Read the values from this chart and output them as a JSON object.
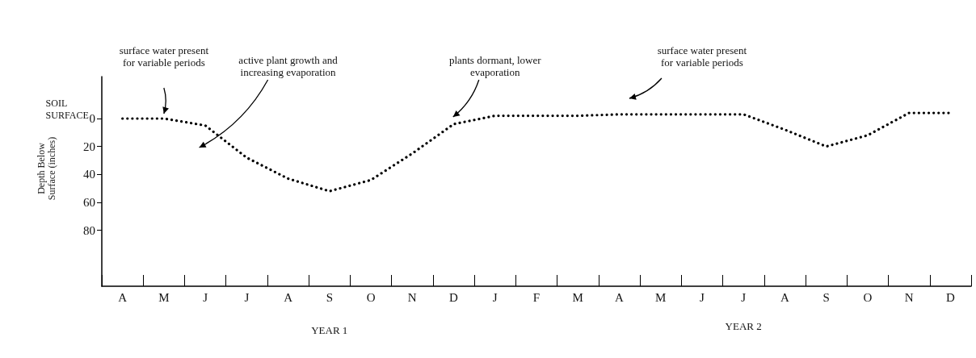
{
  "chart_data": {
    "type": "line",
    "ylabel": "Depth Below Surface (inches)",
    "categories": [
      "A",
      "M",
      "J",
      "J",
      "A",
      "S",
      "O",
      "N",
      "D",
      "J",
      "F",
      "M",
      "A",
      "M",
      "J",
      "J",
      "A",
      "S",
      "O",
      "N",
      "D"
    ],
    "series": [
      {
        "color": "#000000",
        "values": [
          0,
          0,
          5,
          28,
          43,
          52,
          44,
          25,
          4,
          -2,
          -2,
          -2,
          -3,
          -3,
          -3,
          -3,
          8,
          20,
          12,
          -4,
          -4
        ]
      }
    ],
    "ylim": [
      120,
      -30
    ],
    "yticks": [
      0,
      20,
      40,
      60,
      80
    ],
    "grid": false,
    "marker": "none",
    "line_style": "dotted",
    "annotations": [
      "SOIL SURFACE",
      "surface water present for variable periods",
      "active plant growth and increasing evaporation",
      "plants dormant, lower evaporation",
      "surface water present for variable periods",
      "YEAR 1",
      "YEAR 2"
    ]
  }
}
